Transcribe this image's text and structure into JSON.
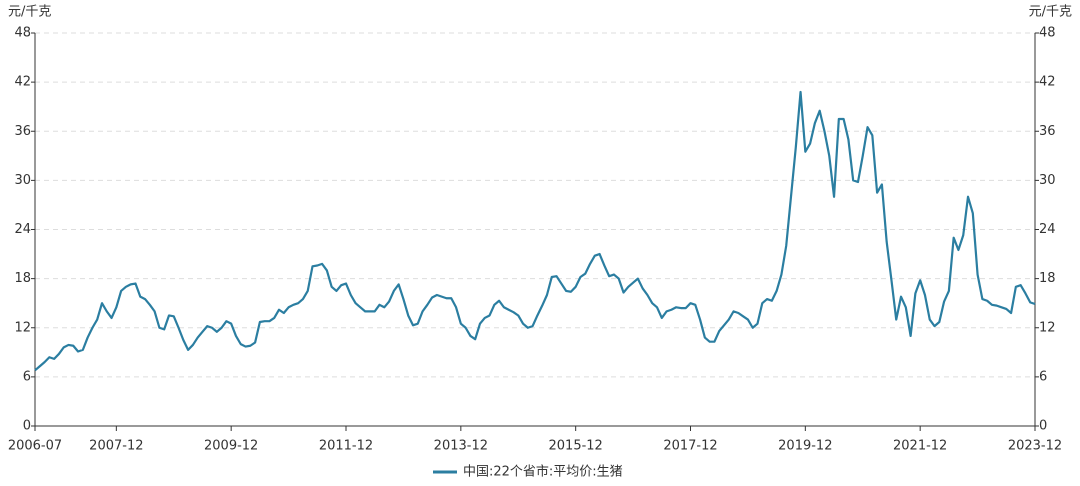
{
  "chart_data": {
    "type": "line",
    "y_label": "元/千克",
    "y2_label": "元/千克",
    "x": [
      "2006-07",
      "2006-08",
      "2006-09",
      "2006-10",
      "2006-11",
      "2006-12",
      "2007-01",
      "2007-02",
      "2007-03",
      "2007-04",
      "2007-05",
      "2007-06",
      "2007-07",
      "2007-08",
      "2007-09",
      "2007-10",
      "2007-11",
      "2007-12",
      "2008-01",
      "2008-02",
      "2008-03",
      "2008-04",
      "2008-05",
      "2008-06",
      "2008-07",
      "2008-08",
      "2008-09",
      "2008-10",
      "2008-11",
      "2008-12",
      "2009-01",
      "2009-02",
      "2009-03",
      "2009-04",
      "2009-05",
      "2009-06",
      "2009-07",
      "2009-08",
      "2009-09",
      "2009-10",
      "2009-11",
      "2009-12",
      "2010-01",
      "2010-02",
      "2010-03",
      "2010-04",
      "2010-05",
      "2010-06",
      "2010-07",
      "2010-08",
      "2010-09",
      "2010-10",
      "2010-11",
      "2010-12",
      "2011-01",
      "2011-02",
      "2011-03",
      "2011-04",
      "2011-05",
      "2011-06",
      "2011-07",
      "2011-08",
      "2011-09",
      "2011-10",
      "2011-11",
      "2011-12",
      "2012-01",
      "2012-02",
      "2012-03",
      "2012-04",
      "2012-05",
      "2012-06",
      "2012-07",
      "2012-08",
      "2012-09",
      "2012-10",
      "2012-11",
      "2012-12",
      "2013-01",
      "2013-02",
      "2013-03",
      "2013-04",
      "2013-05",
      "2013-06",
      "2013-07",
      "2013-08",
      "2013-09",
      "2013-10",
      "2013-11",
      "2013-12",
      "2014-01",
      "2014-02",
      "2014-03",
      "2014-04",
      "2014-05",
      "2014-06",
      "2014-07",
      "2014-08",
      "2014-09",
      "2014-10",
      "2014-11",
      "2014-12",
      "2015-01",
      "2015-02",
      "2015-03",
      "2015-04",
      "2015-05",
      "2015-06",
      "2015-07",
      "2015-08",
      "2015-09",
      "2015-10",
      "2015-11",
      "2015-12",
      "2016-01",
      "2016-02",
      "2016-03",
      "2016-04",
      "2016-05",
      "2016-06",
      "2016-07",
      "2016-08",
      "2016-09",
      "2016-10",
      "2016-11",
      "2016-12",
      "2017-01",
      "2017-02",
      "2017-03",
      "2017-04",
      "2017-05",
      "2017-06",
      "2017-07",
      "2017-08",
      "2017-09",
      "2017-10",
      "2017-11",
      "2017-12",
      "2018-01",
      "2018-02",
      "2018-03",
      "2018-04",
      "2018-05",
      "2018-06",
      "2018-07",
      "2018-08",
      "2018-09",
      "2018-10",
      "2018-11",
      "2018-12",
      "2019-01",
      "2019-02",
      "2019-03",
      "2019-04",
      "2019-05",
      "2019-06",
      "2019-07",
      "2019-08",
      "2019-09",
      "2019-10",
      "2019-11",
      "2019-12",
      "2020-01",
      "2020-02",
      "2020-03",
      "2020-04",
      "2020-05",
      "2020-06",
      "2020-07",
      "2020-08",
      "2020-09",
      "2020-10",
      "2020-11",
      "2020-12",
      "2021-01",
      "2021-02",
      "2021-03",
      "2021-04",
      "2021-05",
      "2021-06",
      "2021-07",
      "2021-08",
      "2021-09",
      "2021-10",
      "2021-11",
      "2021-12",
      "2022-01",
      "2022-02",
      "2022-03",
      "2022-04",
      "2022-05",
      "2022-06",
      "2022-07",
      "2022-08",
      "2022-09",
      "2022-10",
      "2022-11",
      "2022-12",
      "2023-01",
      "2023-02",
      "2023-03",
      "2023-04",
      "2023-05",
      "2023-06",
      "2023-07",
      "2023-08",
      "2023-09",
      "2023-10",
      "2023-11",
      "2023-12"
    ],
    "series": [
      {
        "name": "中国:22个省市:平均价:生猪",
        "color": "#2b7ea1",
        "values": [
          6.8,
          7.3,
          7.8,
          8.4,
          8.2,
          8.8,
          9.6,
          9.9,
          9.8,
          9.1,
          9.3,
          10.8,
          12.0,
          13.0,
          15.0,
          14.0,
          13.2,
          14.5,
          16.5,
          17.0,
          17.3,
          17.4,
          15.8,
          15.5,
          14.8,
          14.0,
          12.0,
          11.8,
          13.5,
          13.4,
          12.0,
          10.5,
          9.3,
          9.9,
          10.8,
          11.5,
          12.2,
          12.0,
          11.5,
          12.0,
          12.8,
          12.5,
          11.0,
          10.0,
          9.7,
          9.8,
          10.2,
          12.7,
          12.8,
          12.8,
          13.2,
          14.2,
          13.8,
          14.5,
          14.8,
          15.0,
          15.5,
          16.5,
          19.5,
          19.6,
          19.8,
          19.0,
          17.0,
          16.5,
          17.2,
          17.4,
          16.0,
          15.0,
          14.5,
          14.0,
          14.0,
          14.0,
          14.8,
          14.5,
          15.2,
          16.5,
          17.3,
          15.5,
          13.5,
          12.3,
          12.5,
          14.0,
          14.8,
          15.7,
          16.0,
          15.8,
          15.6,
          15.6,
          14.5,
          12.5,
          12.0,
          11.0,
          10.6,
          12.5,
          13.2,
          13.5,
          14.8,
          15.3,
          14.5,
          14.2,
          13.9,
          13.5,
          12.5,
          12.0,
          12.2,
          13.5,
          14.7,
          16.0,
          18.2,
          18.3,
          17.4,
          16.5,
          16.4,
          17.0,
          18.2,
          18.6,
          19.8,
          20.8,
          21.0,
          19.6,
          18.3,
          18.5,
          18.0,
          16.3,
          17.0,
          17.5,
          18.0,
          16.8,
          16.0,
          15.0,
          14.5,
          13.2,
          14.0,
          14.2,
          14.5,
          14.4,
          14.4,
          15.0,
          14.8,
          13.0,
          10.8,
          10.3,
          10.3,
          11.6,
          12.3,
          13.0,
          14.0,
          13.8,
          13.4,
          13.0,
          12.0,
          12.5,
          15.0,
          15.5,
          15.3,
          16.5,
          18.5,
          22.0,
          28.0,
          34.0,
          40.8,
          33.5,
          34.5,
          37.0,
          38.5,
          36.0,
          33.0,
          28.0,
          37.5,
          37.5,
          35.0,
          30.0,
          29.8,
          33.0,
          36.5,
          35.5,
          28.5,
          29.5,
          22.5,
          17.8,
          13.0,
          15.8,
          14.5,
          11.0,
          16.2,
          17.8,
          16.0,
          13.0,
          12.2,
          12.7,
          15.2,
          16.5,
          23.0,
          21.5,
          23.3,
          28.0,
          26.0,
          18.5,
          15.5,
          15.3,
          14.8,
          14.7,
          14.5,
          14.3,
          13.8,
          17.0,
          17.2,
          16.2,
          15.1,
          14.9
        ]
      }
    ],
    "xticks": [
      "2006-07",
      "2007-12",
      "2009-12",
      "2011-12",
      "2013-12",
      "2015-12",
      "2017-12",
      "2019-12",
      "2021-12",
      "2023-12"
    ],
    "ylim": [
      0,
      48
    ],
    "yticks": [
      0,
      6,
      12,
      18,
      24,
      30,
      36,
      42,
      48
    ],
    "y2lim": [
      0,
      48
    ],
    "y2ticks": [
      0,
      6,
      12,
      18,
      24,
      30,
      36,
      42,
      48
    ],
    "grid": true,
    "legend": "bottom"
  }
}
